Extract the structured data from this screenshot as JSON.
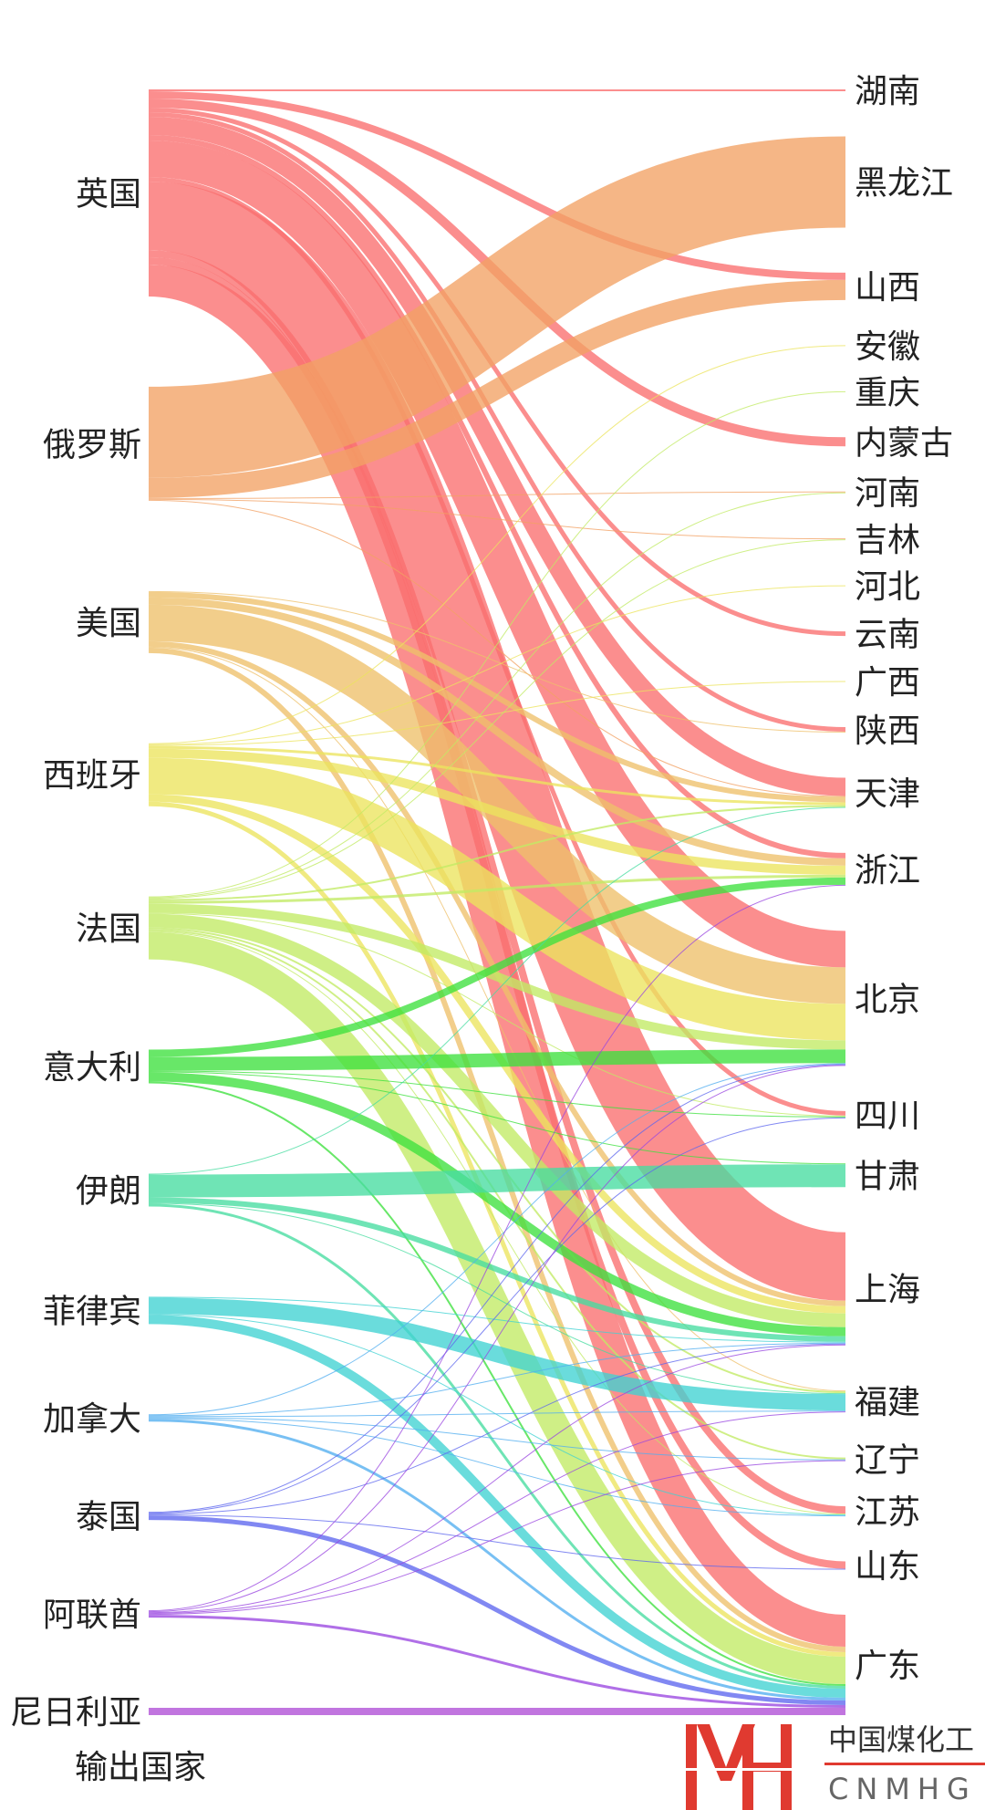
{
  "chart_data": {
    "type": "sankey",
    "xlabel": "输出国家",
    "sources": [
      {
        "name": "英国",
        "color": "#fa6e6e"
      },
      {
        "name": "俄罗斯",
        "color": "#f2a164"
      },
      {
        "name": "美国",
        "color": "#eec06a"
      },
      {
        "name": "西班牙",
        "color": "#ece45e"
      },
      {
        "name": "法国",
        "color": "#c2ea64"
      },
      {
        "name": "意大利",
        "color": "#3ee03e"
      },
      {
        "name": "伊朗",
        "color": "#46dca0"
      },
      {
        "name": "菲律宾",
        "color": "#40d2d2"
      },
      {
        "name": "加拿大",
        "color": "#52aef0"
      },
      {
        "name": "泰国",
        "color": "#5e66ee"
      },
      {
        "name": "阿联酋",
        "color": "#9a46e0"
      },
      {
        "name": "尼日利亚",
        "color": "#b04ed6"
      }
    ],
    "targets": [
      "湖南",
      "黑龙江",
      "山西",
      "安徽",
      "重庆",
      "内蒙古",
      "河南",
      "吉林",
      "河北",
      "云南",
      "广西",
      "陕西",
      "天津",
      "浙江",
      "北京",
      "四川",
      "甘肃",
      "上海",
      "福建",
      "辽宁",
      "江苏",
      "山东",
      "广东"
    ],
    "flows": [
      [
        "英国",
        "湖南",
        2
      ],
      [
        "英国",
        "山西",
        8
      ],
      [
        "英国",
        "内蒙古",
        10
      ],
      [
        "英国",
        "云南",
        5
      ],
      [
        "英国",
        "陕西",
        5
      ],
      [
        "英国",
        "天津",
        20
      ],
      [
        "英国",
        "浙江",
        6
      ],
      [
        "英国",
        "北京",
        40
      ],
      [
        "英国",
        "四川",
        5
      ],
      [
        "英国",
        "上海",
        75
      ],
      [
        "英国",
        "江苏",
        8
      ],
      [
        "英国",
        "山东",
        8
      ],
      [
        "英国",
        "广东",
        35
      ],
      [
        "俄罗斯",
        "黑龙江",
        100
      ],
      [
        "俄罗斯",
        "山西",
        22
      ],
      [
        "俄罗斯",
        "河南",
        1
      ],
      [
        "俄罗斯",
        "吉林",
        1
      ],
      [
        "俄罗斯",
        "天津",
        1
      ],
      [
        "美国",
        "陕西",
        1
      ],
      [
        "美国",
        "天津",
        6
      ],
      [
        "美国",
        "浙江",
        8
      ],
      [
        "美国",
        "北京",
        40
      ],
      [
        "美国",
        "福建",
        1
      ],
      [
        "美国",
        "上海",
        6
      ],
      [
        "美国",
        "广东",
        6
      ],
      [
        "西班牙",
        "安徽",
        1
      ],
      [
        "西班牙",
        "河北",
        1
      ],
      [
        "西班牙",
        "广西",
        1
      ],
      [
        "西班牙",
        "天津",
        3
      ],
      [
        "西班牙",
        "浙江",
        10
      ],
      [
        "西班牙",
        "北京",
        40
      ],
      [
        "西班牙",
        "上海",
        8
      ],
      [
        "西班牙",
        "广东",
        5
      ],
      [
        "法国",
        "重庆",
        1
      ],
      [
        "法国",
        "河南",
        1
      ],
      [
        "法国",
        "吉林",
        1
      ],
      [
        "法国",
        "天津",
        2
      ],
      [
        "法国",
        "浙江",
        3
      ],
      [
        "法国",
        "北京",
        10
      ],
      [
        "法国",
        "四川",
        1
      ],
      [
        "法国",
        "上海",
        15
      ],
      [
        "法国",
        "福建",
        2
      ],
      [
        "法国",
        "辽宁",
        2
      ],
      [
        "法国",
        "江苏",
        1
      ],
      [
        "法国",
        "广东",
        30
      ],
      [
        "意大利",
        "浙江",
        8
      ],
      [
        "意大利",
        "北京",
        15
      ],
      [
        "意大利",
        "四川",
        1
      ],
      [
        "意大利",
        "甘肃",
        1
      ],
      [
        "意大利",
        "上海",
        10
      ],
      [
        "意大利",
        "广东",
        2
      ],
      [
        "伊朗",
        "天津",
        1
      ],
      [
        "伊朗",
        "甘肃",
        25
      ],
      [
        "伊朗",
        "上海",
        6
      ],
      [
        "伊朗",
        "福建",
        1
      ],
      [
        "伊朗",
        "广东",
        3
      ],
      [
        "菲律宾",
        "上海",
        1
      ],
      [
        "菲律宾",
        "福建",
        18
      ],
      [
        "菲律宾",
        "江苏",
        1
      ],
      [
        "菲律宾",
        "广东",
        10
      ],
      [
        "加拿大",
        "北京",
        1
      ],
      [
        "加拿大",
        "上海",
        1
      ],
      [
        "加拿大",
        "福建",
        1
      ],
      [
        "加拿大",
        "辽宁",
        1
      ],
      [
        "加拿大",
        "江苏",
        1
      ],
      [
        "加拿大",
        "广东",
        3
      ],
      [
        "泰国",
        "北京",
        1
      ],
      [
        "泰国",
        "四川",
        1
      ],
      [
        "泰国",
        "上海",
        1
      ],
      [
        "泰国",
        "山东",
        1
      ],
      [
        "泰国",
        "广东",
        5
      ],
      [
        "阿联酋",
        "浙江",
        1
      ],
      [
        "阿联酋",
        "北京",
        1
      ],
      [
        "阿联酋",
        "上海",
        1
      ],
      [
        "阿联酋",
        "福建",
        1
      ],
      [
        "阿联酋",
        "辽宁",
        1
      ],
      [
        "阿联酋",
        "广东",
        3
      ],
      [
        "尼日利亚",
        "广东",
        8
      ]
    ]
  },
  "logo": {
    "mark": "MH",
    "cn": "中国煤化工",
    "en": "CNMHG"
  }
}
